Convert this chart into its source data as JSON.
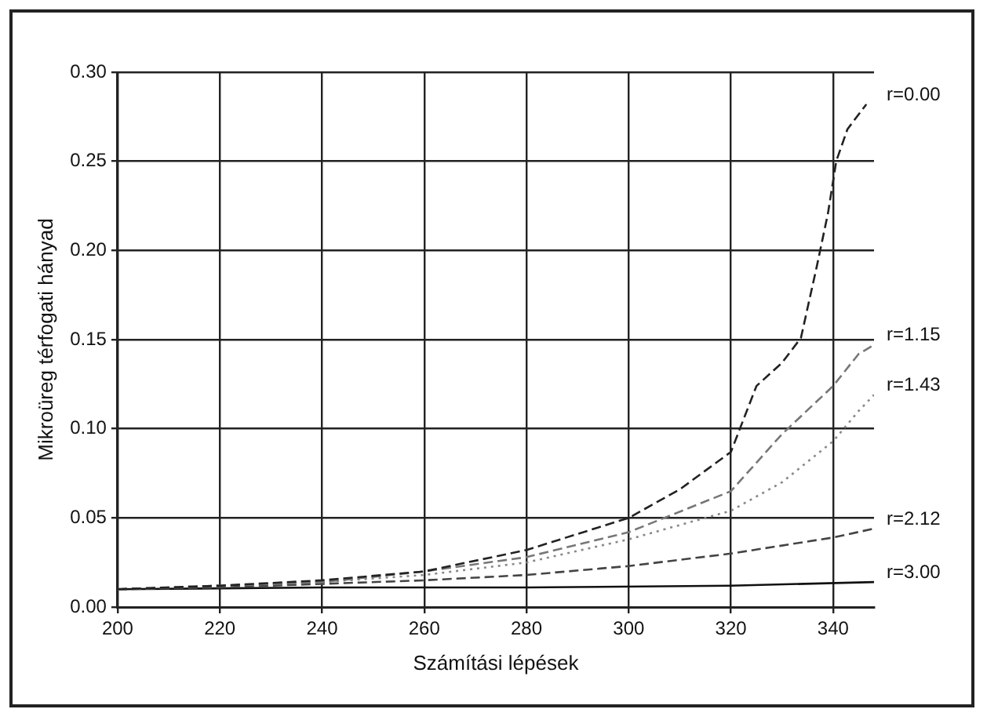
{
  "chart_data": {
    "type": "line",
    "xlabel": "Számítási lépések",
    "ylabel": "Mikroüreg térfogati hányad",
    "xlim": [
      200,
      348
    ],
    "xticks": [
      200,
      220,
      240,
      260,
      280,
      300,
      320,
      340
    ],
    "ylim": [
      0,
      0.3
    ],
    "yticks": [
      {
        "value": 0,
        "label": "0.00"
      },
      {
        "value": 0.05,
        "label": "0.05"
      },
      {
        "value": 0.1,
        "label": "0.10"
      },
      {
        "value": 0.15,
        "label": "0.15"
      },
      {
        "value": 0.2,
        "label": "0.20"
      },
      {
        "value": 0.25,
        "label": "0.25"
      },
      {
        "value": 0.3,
        "label": "0.30"
      }
    ],
    "grid": true,
    "legend": false,
    "marker": "none",
    "series": [
      {
        "name": "r=0.00",
        "color": "#222222",
        "line_style": "dashed",
        "x": [
          200,
          220,
          240,
          260,
          280,
          300,
          310,
          320,
          325,
          330,
          333.7,
          336.8,
          339,
          340.6,
          342.8,
          346.5
        ],
        "values": [
          0.01,
          0.012,
          0.015,
          0.02,
          0.032,
          0.05,
          0.066,
          0.087,
          0.124,
          0.137,
          0.151,
          0.191,
          0.221,
          0.25,
          0.268,
          0.282
        ]
      },
      {
        "name": "r=1.15",
        "color": "#777777",
        "line_style": "dashed",
        "x": [
          200,
          220,
          240,
          260,
          280,
          300,
          320,
          330,
          340,
          345,
          348
        ],
        "values": [
          0.01,
          0.012,
          0.014,
          0.02,
          0.028,
          0.042,
          0.065,
          0.097,
          0.124,
          0.142,
          0.147
        ]
      },
      {
        "name": "r=1.43",
        "color": "#888888",
        "line_style": "dotted",
        "x": [
          200,
          220,
          240,
          260,
          280,
          300,
          320,
          330,
          340,
          345,
          348
        ],
        "values": [
          0.01,
          0.012,
          0.014,
          0.018,
          0.025,
          0.038,
          0.054,
          0.07,
          0.093,
          0.11,
          0.119
        ]
      },
      {
        "name": "r=2.12",
        "color": "#444444",
        "line_style": "dashed",
        "x": [
          200,
          220,
          240,
          260,
          280,
          300,
          320,
          340,
          348
        ],
        "values": [
          0.01,
          0.011,
          0.013,
          0.015,
          0.018,
          0.023,
          0.03,
          0.039,
          0.044
        ]
      },
      {
        "name": "r=3.00",
        "color": "#111111",
        "line_style": "solid",
        "x": [
          200,
          240,
          280,
          320,
          348
        ],
        "values": [
          0.01,
          0.011,
          0.011,
          0.012,
          0.014
        ]
      }
    ]
  }
}
